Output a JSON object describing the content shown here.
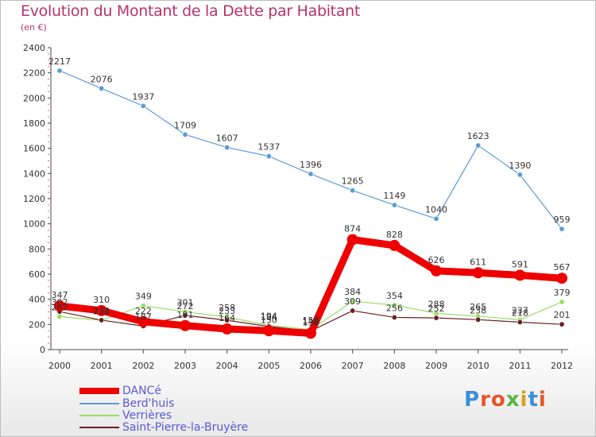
{
  "title": "Evolution du Montant de la Dette par Habitant",
  "subtitle": "(en €)",
  "logo": {
    "text": "Proxiti",
    "colors": [
      "#3a8fd6",
      "#e8542a",
      "#e8542a",
      "#58b548",
      "#d6a21e",
      "#3a8fd6",
      "#e8542a"
    ]
  },
  "colors": {
    "title": "#b8336a",
    "axis": "#4a4a4a",
    "grid": "#d9d9d9",
    "legend_text": "#5a5ad6"
  },
  "chart_data": {
    "type": "line",
    "title": "Evolution du Montant de la Dette par Habitant",
    "subtitle": "(en €)",
    "x": [
      "2000",
      "2001",
      "2002",
      "2003",
      "2004",
      "2005",
      "2006",
      "2007",
      "2008",
      "2009",
      "2010",
      "2011",
      "2012"
    ],
    "ylim": [
      0,
      2400
    ],
    "yticks": [
      0,
      200,
      400,
      600,
      800,
      1000,
      1200,
      1400,
      1600,
      1800,
      2000,
      2200,
      2400
    ],
    "grid": false,
    "legend_position": "bottom-left",
    "series": [
      {
        "name": "DANCé",
        "color": "#ee0000",
        "width": 9,
        "point_radius": 7,
        "values": [
          347,
          310,
          222,
          191,
          164,
          150,
          130,
          874,
          828,
          626,
          611,
          591,
          567
        ],
        "labels": [
          "347",
          "310",
          "222",
          "191",
          "164",
          "150",
          "130",
          "874",
          "828",
          "626",
          "611",
          "591",
          "567"
        ]
      },
      {
        "name": "Berd'huis",
        "color": "#5b9bd5",
        "width": 1.2,
        "point_radius": 3.2,
        "values": [
          2217,
          2076,
          1937,
          1709,
          1607,
          1537,
          1396,
          1265,
          1149,
          1040,
          1623,
          1390,
          959
        ],
        "labels": [
          "2217",
          "2076",
          "1937",
          "1709",
          "1607",
          "1537",
          "1396",
          "1265",
          "1149",
          "1040",
          "1623",
          "1390",
          "959"
        ]
      },
      {
        "name": "Verrières",
        "color": "#99dd66",
        "width": 1.2,
        "point_radius": 3.2,
        "values": [
          262,
          232,
          349,
          301,
          258,
          194,
          158,
          384,
          354,
          288,
          265,
          237,
          379
        ],
        "labels": [
          "262",
          "232",
          "349",
          "301",
          "258",
          "194",
          "158",
          "384",
          "354",
          "288",
          "265",
          "237",
          "379"
        ]
      },
      {
        "name": "Saint-Pierre-la-Bruyère",
        "color": "#6b1f1f",
        "width": 1.2,
        "point_radius": 3.2,
        "values": [
          302,
          234,
          187,
          272,
          233,
          184,
          148,
          309,
          256,
          252,
          238,
          218,
          201
        ],
        "labels": [
          "302",
          "234",
          "187",
          "272",
          "233",
          "184",
          "148",
          "309",
          "256",
          "252",
          "238",
          "218",
          "201"
        ]
      }
    ]
  }
}
